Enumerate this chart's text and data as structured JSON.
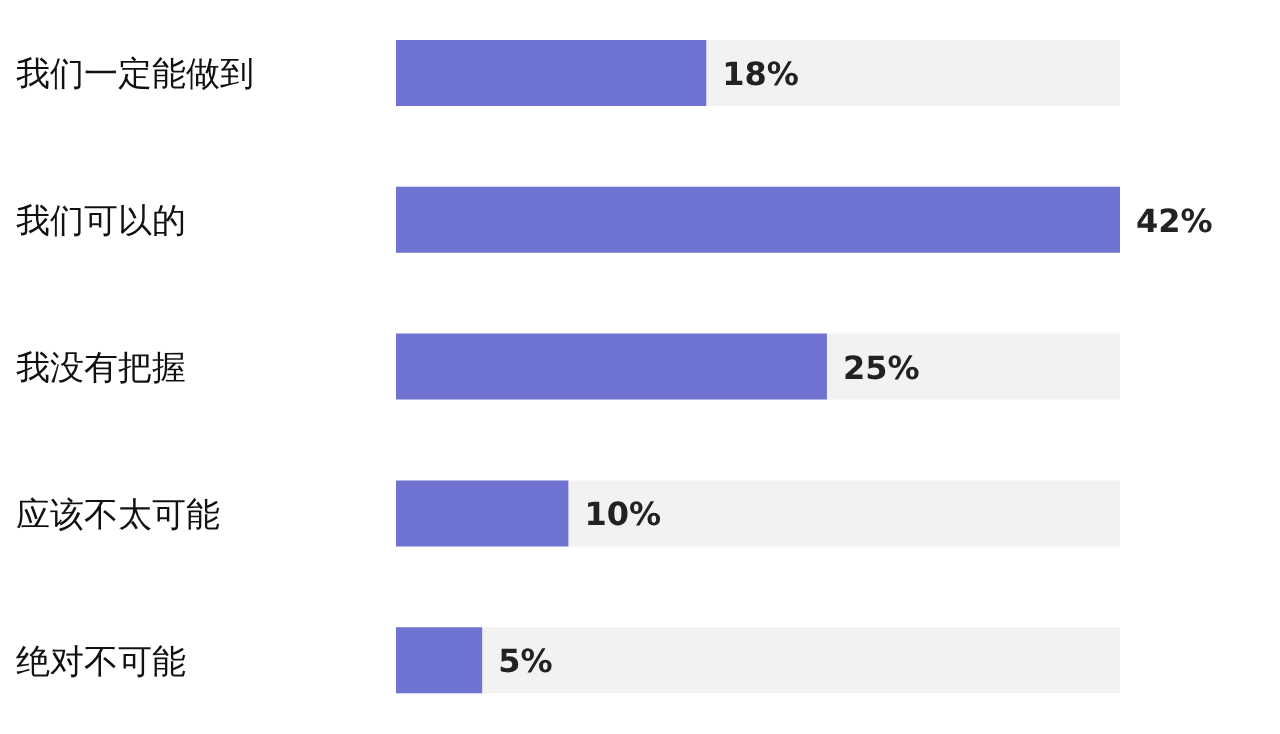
{
  "chart_data": {
    "type": "bar",
    "orientation": "horizontal",
    "categories": [
      "我们一定能做到",
      "我们可以的",
      "我没有把握",
      "应该不太可能",
      "绝对不可能"
    ],
    "values": [
      18,
      42,
      25,
      10,
      5
    ],
    "value_labels": [
      "18%",
      "42%",
      "25%",
      "10%",
      "5%"
    ],
    "color": "#6f73d2",
    "grid": false,
    "legend": false
  }
}
